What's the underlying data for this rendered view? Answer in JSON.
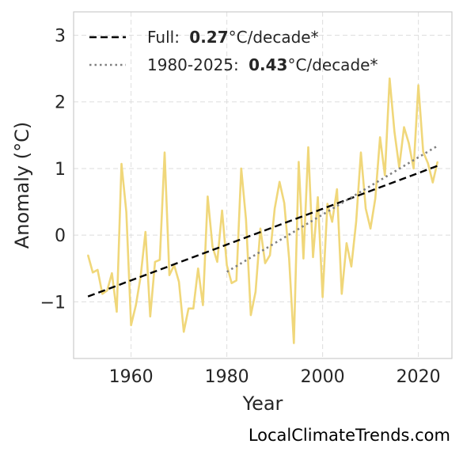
{
  "chart_data": {
    "type": "line",
    "xlabel": "Year",
    "ylabel": "Anomaly (°C)",
    "xlim": [
      1948,
      2027
    ],
    "ylim": [
      -1.85,
      3.35
    ],
    "xticks": [
      1960,
      1980,
      2000,
      2020
    ],
    "xtick_labels": [
      "1960",
      "1980",
      "2000",
      "2020"
    ],
    "yticks": [
      -1,
      0,
      1,
      2,
      3
    ],
    "ytick_labels": [
      "−1",
      "0",
      "1",
      "2",
      "3"
    ],
    "grid": true,
    "legend_position": "top-left",
    "series": [
      {
        "color": "#f0d77a",
        "x": [
          1951,
          1952,
          1953,
          1954,
          1955,
          1956,
          1957,
          1958,
          1959,
          1960,
          1961,
          1962,
          1963,
          1964,
          1965,
          1966,
          1967,
          1968,
          1969,
          1970,
          1971,
          1972,
          1973,
          1974,
          1975,
          1976,
          1977,
          1978,
          1979,
          1980,
          1981,
          1982,
          1983,
          1984,
          1985,
          1986,
          1987,
          1988,
          1989,
          1990,
          1991,
          1992,
          1993,
          1994,
          1995,
          1996,
          1997,
          1998,
          1999,
          2000,
          2001,
          2002,
          2003,
          2004,
          2005,
          2006,
          2007,
          2008,
          2009,
          2010,
          2011,
          2012,
          2013,
          2014,
          2015,
          2016,
          2017,
          2018,
          2019,
          2020,
          2021,
          2022,
          2023,
          2024
        ],
        "y": [
          -0.3,
          -0.56,
          -0.52,
          -0.88,
          -0.83,
          -0.57,
          -1.15,
          1.07,
          0.35,
          -1.35,
          -1.05,
          -0.62,
          0.05,
          -1.22,
          -0.4,
          -0.37,
          1.24,
          -0.6,
          -0.45,
          -0.7,
          -1.45,
          -1.1,
          -1.1,
          -0.5,
          -1.05,
          0.58,
          -0.17,
          -0.4,
          0.37,
          -0.45,
          -0.72,
          -0.68,
          1.0,
          0.24,
          -1.2,
          -0.85,
          0.1,
          -0.42,
          -0.3,
          0.4,
          0.8,
          0.48,
          -0.35,
          -1.62,
          1.1,
          -0.35,
          1.32,
          -0.33,
          0.57,
          -0.93,
          0.47,
          0.2,
          0.69,
          -0.88,
          -0.12,
          -0.47,
          0.2,
          1.24,
          0.4,
          0.1,
          0.55,
          1.47,
          0.9,
          2.35,
          1.55,
          1.02,
          1.62,
          1.38,
          1.0,
          2.25,
          1.25,
          1.08,
          0.79,
          1.1
        ]
      },
      {
        "name": "Full:",
        "rate": "0.27",
        "unit": "°C/decade*",
        "style": "dashed",
        "color": "#000000",
        "x": [
          1951,
          2024
        ],
        "y": [
          -0.92,
          1.04
        ]
      },
      {
        "name": "1980-2025:",
        "rate": "0.43",
        "unit": "°C/decade*",
        "style": "dotted",
        "color": "#808080",
        "x": [
          1980,
          2024
        ],
        "y": [
          -0.55,
          1.34
        ]
      }
    ]
  },
  "credit": "LocalClimateTrends.com"
}
